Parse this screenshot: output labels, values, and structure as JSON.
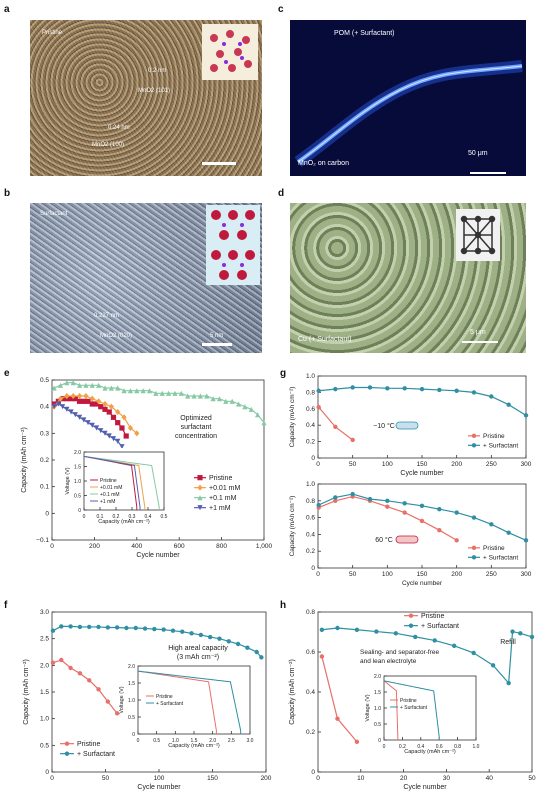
{
  "panel_letters": {
    "a": "a",
    "b": "b",
    "c": "c",
    "d": "d",
    "e": "e",
    "f": "f",
    "g": "g",
    "h": "h"
  },
  "micrographs": {
    "a": {
      "corner": "Pristine",
      "labels": [
        "0.2 nm",
        "MnO2 (101)",
        "0.24 nm",
        "MnO2 (100)"
      ]
    },
    "b": {
      "corner": "Surfactant",
      "labels": [
        "0.227 nm",
        "MnO2 (020)"
      ],
      "scale": "5 nm"
    },
    "c": {
      "top": "POM (+ Surfactant)",
      "bottom": "MnO₂ on carbon",
      "scale": "50 μm"
    },
    "d": {
      "bottom": "Cu (+ Surfactant)",
      "scale": "5 μm"
    }
  },
  "colors": {
    "red": "#c0193e",
    "orange": "#f0a048",
    "green": "#86c9a4",
    "blue": "#5360b0",
    "teal": "#2f8fa3",
    "pink": "#e8706a",
    "grey": "#777777"
  },
  "chart_data": [
    {
      "id": "e",
      "type": "line",
      "xlabel": "Cycle number",
      "ylabel": "Capacity (mAh cm⁻²)",
      "xlim": [
        0,
        1000
      ],
      "ylim": [
        -0.1,
        0.5
      ],
      "xticks": [
        "0",
        "200",
        "400",
        "600",
        "800",
        "1,000"
      ],
      "yticks": [
        "−0.1",
        "0",
        "0.1",
        "0.2",
        "0.3",
        "0.4",
        "0.5"
      ],
      "annotation": "Optimized surfactant concentration",
      "legend": [
        "Pristine",
        "+0.01 mM",
        "+0.1 mM",
        "+1 mM"
      ],
      "series": [
        {
          "name": "Pristine",
          "color": "#c0193e",
          "marker": "square",
          "x": [
            10,
            30,
            50,
            70,
            90,
            110,
            130,
            150,
            170,
            190,
            210,
            230,
            250,
            270,
            290,
            310,
            330,
            350
          ],
          "y": [
            0.41,
            0.42,
            0.43,
            0.43,
            0.43,
            0.43,
            0.42,
            0.42,
            0.42,
            0.41,
            0.41,
            0.4,
            0.39,
            0.38,
            0.36,
            0.34,
            0.32,
            0.29
          ]
        },
        {
          "name": "+0.01 mM",
          "color": "#f0a048",
          "marker": "diamond",
          "x": [
            10,
            40,
            70,
            100,
            130,
            160,
            190,
            220,
            250,
            280,
            310,
            340,
            370,
            400
          ],
          "y": [
            0.4,
            0.43,
            0.44,
            0.44,
            0.44,
            0.44,
            0.43,
            0.42,
            0.41,
            0.4,
            0.38,
            0.36,
            0.32,
            0.3
          ]
        },
        {
          "name": "+0.1 mM",
          "color": "#86c9a4",
          "marker": "triangle",
          "x": [
            10,
            40,
            70,
            100,
            130,
            160,
            190,
            220,
            250,
            280,
            310,
            340,
            370,
            400,
            430,
            460,
            490,
            520,
            550,
            580,
            610,
            640,
            670,
            700,
            730,
            760,
            790,
            820,
            850,
            880,
            910,
            940,
            970,
            1000
          ],
          "y": [
            0.47,
            0.48,
            0.49,
            0.49,
            0.48,
            0.48,
            0.48,
            0.48,
            0.47,
            0.47,
            0.47,
            0.46,
            0.46,
            0.46,
            0.46,
            0.46,
            0.45,
            0.45,
            0.45,
            0.45,
            0.45,
            0.44,
            0.44,
            0.44,
            0.44,
            0.43,
            0.43,
            0.42,
            0.42,
            0.41,
            0.4,
            0.39,
            0.37,
            0.34
          ]
        },
        {
          "name": "+1 mM",
          "color": "#5360b0",
          "marker": "triangle-down",
          "x": [
            10,
            30,
            50,
            70,
            90,
            110,
            130,
            150,
            170,
            190,
            210,
            230,
            250,
            270,
            290,
            310,
            330
          ],
          "y": [
            0.4,
            0.41,
            0.4,
            0.39,
            0.38,
            0.37,
            0.36,
            0.35,
            0.34,
            0.33,
            0.32,
            0.31,
            0.3,
            0.29,
            0.28,
            0.27,
            0.25
          ]
        }
      ],
      "inset": {
        "xlabel": "Capacity (mAh cm⁻²)",
        "ylabel": "Voltage (V)",
        "xlim": [
          0,
          0.5
        ],
        "ylim": [
          0,
          2.0
        ],
        "xticks": [
          "0",
          "0.1",
          "0.2",
          "0.3",
          "0.4",
          "0.5"
        ],
        "yticks": [
          "0",
          "0.5",
          "1.0",
          "1.5",
          "2.0"
        ],
        "legend": [
          "Pristine",
          "+0.01 mM",
          "+0.1 mM",
          "+1 mM"
        ],
        "series": [
          {
            "name": "Pristine",
            "cap": 0.33,
            "color": "#c0193e"
          },
          {
            "name": "+0.01 mM",
            "cap": 0.38,
            "color": "#f0a048"
          },
          {
            "name": "+0.1 mM",
            "cap": 0.47,
            "color": "#86c9a4"
          },
          {
            "name": "+1 mM",
            "cap": 0.35,
            "color": "#5360b0"
          }
        ]
      }
    },
    {
      "id": "f",
      "type": "line",
      "xlabel": "Cycle number",
      "ylabel": "Capacity (mAh cm⁻²)",
      "xlim": [
        0,
        230
      ],
      "ylim": [
        0,
        3.0
      ],
      "xticks": [
        "0",
        "50",
        "100",
        "150",
        "200"
      ],
      "yticks": [
        "0",
        "0.5",
        "1.0",
        "1.5",
        "2.0",
        "2.5",
        "3.0"
      ],
      "annotation": "High areal capacity (3 mAh cm⁻²)",
      "legend": [
        "Pristine",
        "+ Surfactant"
      ],
      "series": [
        {
          "name": "Pristine",
          "color": "#e8706a",
          "x": [
            1,
            10,
            20,
            30,
            40,
            50,
            60,
            70
          ],
          "y": [
            2.05,
            2.1,
            1.95,
            1.85,
            1.72,
            1.55,
            1.32,
            1.1
          ]
        },
        {
          "name": "+ Surfactant",
          "color": "#2f8fa3",
          "x": [
            1,
            10,
            20,
            30,
            40,
            50,
            60,
            70,
            80,
            90,
            100,
            110,
            120,
            130,
            140,
            150,
            160,
            170,
            180,
            190,
            200,
            210,
            220,
            225
          ],
          "y": [
            2.65,
            2.73,
            2.73,
            2.72,
            2.72,
            2.72,
            2.71,
            2.71,
            2.7,
            2.7,
            2.69,
            2.68,
            2.67,
            2.65,
            2.63,
            2.6,
            2.57,
            2.53,
            2.5,
            2.45,
            2.4,
            2.33,
            2.25,
            2.15
          ]
        }
      ],
      "inset": {
        "xlabel": "Capacity (mAh cm⁻²)",
        "ylabel": "Voltage (V)",
        "xlim": [
          0,
          3.0
        ],
        "ylim": [
          0,
          2.0
        ],
        "xticks": [
          "0",
          "0.5",
          "1.0",
          "1.5",
          "2.0",
          "2.5",
          "3.0"
        ],
        "yticks": [
          "0",
          "0.5",
          "1.0",
          "1.5",
          "2.0"
        ],
        "legend": [
          "Pristine",
          "+ Surfactant"
        ],
        "series": [
          {
            "name": "Pristine",
            "cap": 2.1,
            "color": "#e8706a"
          },
          {
            "name": "+ Surfactant",
            "cap": 2.75,
            "color": "#2f8fa3"
          }
        ]
      }
    },
    {
      "id": "g1",
      "type": "line",
      "xlabel": "",
      "ylabel": "Capacity (mAh cm⁻²)",
      "xlim": [
        0,
        300
      ],
      "ylim": [
        0,
        1.0
      ],
      "xticks": [
        "0",
        "50",
        "100",
        "150",
        "200",
        "250",
        "300"
      ],
      "yticks": [
        "0",
        "0.2",
        "0.4",
        "0.6",
        "0.8",
        "1.0"
      ],
      "annotation": "−10 °C",
      "legend": [
        "Pristine",
        "+ Surfactant"
      ],
      "series": [
        {
          "name": "Pristine",
          "color": "#e8706a",
          "x": [
            1,
            25,
            50
          ],
          "y": [
            0.62,
            0.38,
            0.22
          ]
        },
        {
          "name": "+ Surfactant",
          "color": "#2f8fa3",
          "x": [
            1,
            25,
            50,
            75,
            100,
            125,
            150,
            175,
            200,
            225,
            250,
            275,
            300
          ],
          "y": [
            0.82,
            0.84,
            0.86,
            0.86,
            0.85,
            0.85,
            0.84,
            0.83,
            0.82,
            0.8,
            0.75,
            0.65,
            0.52
          ]
        }
      ]
    },
    {
      "id": "g2",
      "type": "line",
      "xlabel": "Cycle number",
      "ylabel": "Capacity (mAh cm⁻²)",
      "xlim": [
        0,
        300
      ],
      "ylim": [
        0,
        1.0
      ],
      "xticks": [
        "0",
        "50",
        "100",
        "150",
        "200",
        "250",
        "300"
      ],
      "yticks": [
        "0",
        "0.2",
        "0.4",
        "0.6",
        "0.8",
        "1.0"
      ],
      "annotation": "60 °C",
      "legend": [
        "Pristine",
        "+ Surfactant"
      ],
      "series": [
        {
          "name": "Pristine",
          "color": "#e8706a",
          "x": [
            1,
            25,
            50,
            75,
            100,
            125,
            150,
            175,
            200
          ],
          "y": [
            0.72,
            0.8,
            0.85,
            0.8,
            0.73,
            0.66,
            0.56,
            0.45,
            0.33
          ]
        },
        {
          "name": "+ Surfactant",
          "color": "#2f8fa3",
          "x": [
            1,
            25,
            50,
            75,
            100,
            125,
            150,
            175,
            200,
            225,
            250,
            275,
            300
          ],
          "y": [
            0.75,
            0.84,
            0.88,
            0.82,
            0.8,
            0.77,
            0.74,
            0.7,
            0.66,
            0.6,
            0.52,
            0.42,
            0.33
          ]
        }
      ]
    },
    {
      "id": "h",
      "type": "line",
      "xlabel": "Cycle number",
      "ylabel": "Capacity (mAh cm⁻²)",
      "xlim": [
        0,
        55
      ],
      "ylim": [
        0,
        0.9
      ],
      "xticks": [
        "0",
        "10",
        "20",
        "30",
        "40",
        "50"
      ],
      "yticks": [
        "0",
        "0.2",
        "0.4",
        "0.6",
        "0.8"
      ],
      "annotation": "Sealing- and separator-free and lean electrolyte",
      "annotation2": "Refill",
      "legend": [
        "Pristine",
        "+ Surfactant"
      ],
      "series": [
        {
          "name": "Pristine",
          "color": "#e8706a",
          "x": [
            1,
            5,
            10
          ],
          "y": [
            0.65,
            0.3,
            0.17
          ]
        },
        {
          "name": "+ Surfactant",
          "color": "#2f8fa3",
          "x": [
            1,
            5,
            10,
            15,
            20,
            25,
            30,
            35,
            40,
            45,
            49,
            50,
            52,
            55
          ],
          "y": [
            0.8,
            0.81,
            0.8,
            0.79,
            0.78,
            0.76,
            0.74,
            0.71,
            0.67,
            0.6,
            0.5,
            0.79,
            0.78,
            0.76
          ]
        }
      ],
      "inset": {
        "xlabel": "Capacity (mAh cm⁻²)",
        "ylabel": "Voltage (V)",
        "xlim": [
          0,
          1.0
        ],
        "ylim": [
          0,
          2.0
        ],
        "xticks": [
          "0",
          "0.2",
          "0.4",
          "0.6",
          "0.8",
          "1.0"
        ],
        "yticks": [
          "0",
          "0.5",
          "1.0",
          "1.5",
          "2.0"
        ],
        "legend": [
          "Pristine",
          "+ Surfactant"
        ],
        "series": [
          {
            "name": "Pristine",
            "cap": 0.15,
            "color": "#e8706a"
          },
          {
            "name": "+ Surfactant",
            "cap": 0.6,
            "color": "#2f8fa3"
          }
        ]
      }
    }
  ]
}
